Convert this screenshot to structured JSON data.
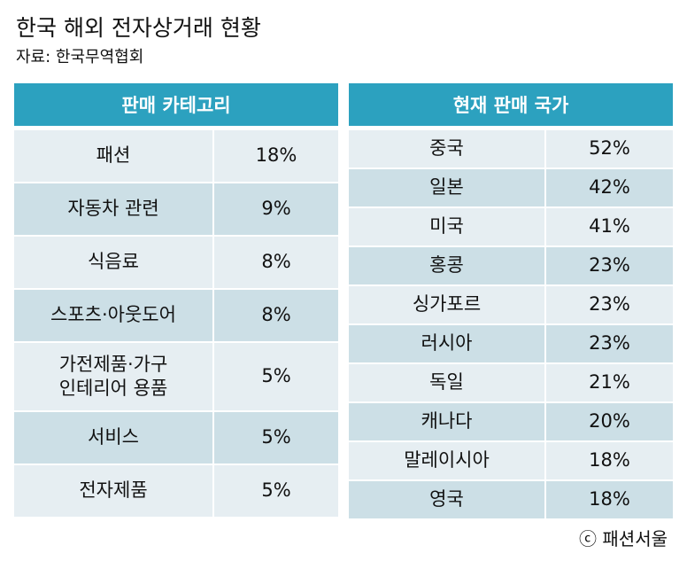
{
  "title": "한국 해외 전자상거래 현황",
  "source": "자료: 한국무역협회",
  "left_table": {
    "header": "판매 카테고리",
    "rows": [
      {
        "label": "패션",
        "value": "18%"
      },
      {
        "label": "자동차 관련",
        "value": "9%"
      },
      {
        "label": "식음료",
        "value": "8%"
      },
      {
        "label": "스포츠·아웃도어",
        "value": "8%"
      },
      {
        "label": "가전제품·가구\n인테리어 용품",
        "value": "5%"
      },
      {
        "label": "서비스",
        "value": "5%"
      },
      {
        "label": "전자제품",
        "value": "5%"
      }
    ]
  },
  "right_table": {
    "header": "현재 판매 국가",
    "rows": [
      {
        "label": "중국",
        "value": "52%"
      },
      {
        "label": "일본",
        "value": "42%"
      },
      {
        "label": "미국",
        "value": "41%"
      },
      {
        "label": "홍콩",
        "value": "23%"
      },
      {
        "label": "싱가포르",
        "value": "23%"
      },
      {
        "label": "러시아",
        "value": "23%"
      },
      {
        "label": "독일",
        "value": "21%"
      },
      {
        "label": "캐나다",
        "value": "20%"
      },
      {
        "label": "말레이시아",
        "value": "18%"
      },
      {
        "label": "영국",
        "value": "18%"
      }
    ]
  },
  "credit": "ⓒ 패션서울"
}
